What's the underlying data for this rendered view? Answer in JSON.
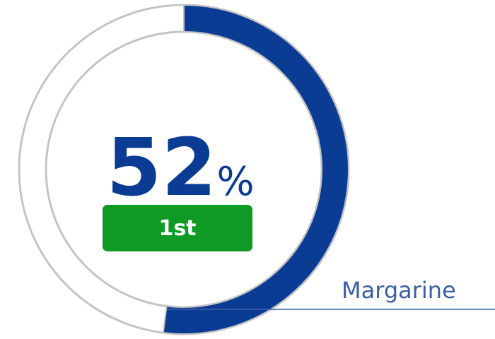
{
  "chart_data": {
    "type": "donut",
    "value": 52,
    "unit": "%",
    "ylim": [
      0,
      100
    ],
    "rank": "1st",
    "category": "Margarine",
    "color": "#0b3c93",
    "track_color": "#c4c4c4",
    "badge_color": "#0f9a25",
    "label_color": "#3c5fa3"
  }
}
